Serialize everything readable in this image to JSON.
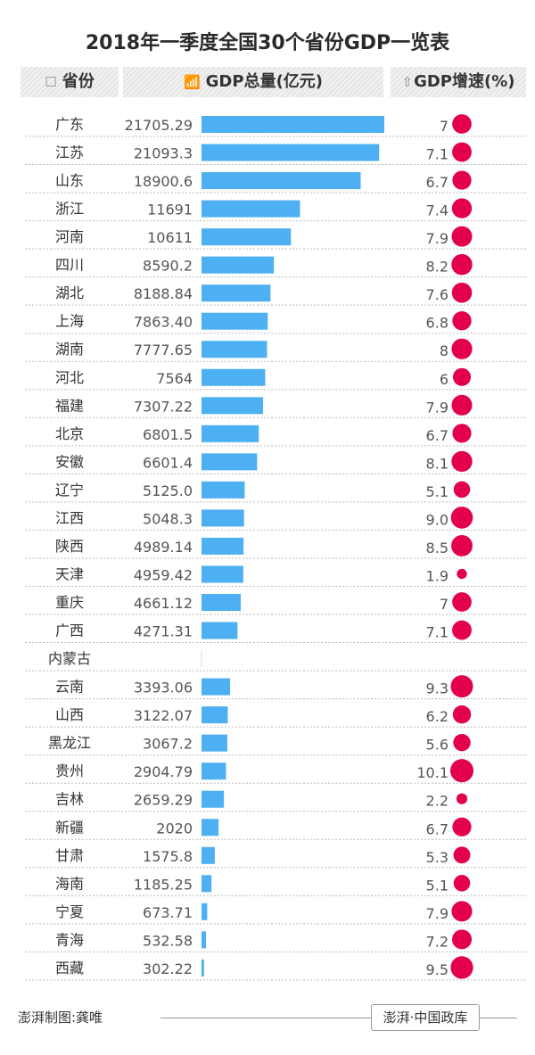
{
  "chart_data": {
    "type": "bar",
    "title": "2018年一季度全国30个省份GDP一览表",
    "columns": {
      "province": "省份",
      "gdp": "GDP总量(亿元)",
      "growth": "GDP增速(%)"
    },
    "column_icons": [
      "checkbox-icon",
      "bar-chart-icon",
      "up-arrow-icon"
    ],
    "colors": {
      "bar": "#4db0f2",
      "bubble": "#e3004f"
    },
    "rows": [
      {
        "province": "广东",
        "gdp": "21705.29",
        "growth": "7"
      },
      {
        "province": "江苏",
        "gdp": "21093.3",
        "growth": "7.1"
      },
      {
        "province": "山东",
        "gdp": "18900.6",
        "growth": "6.7"
      },
      {
        "province": "浙江",
        "gdp": "11691",
        "growth": "7.4"
      },
      {
        "province": "河南",
        "gdp": "10611",
        "growth": "7.9"
      },
      {
        "province": "四川",
        "gdp": "8590.2",
        "growth": "8.2"
      },
      {
        "province": "湖北",
        "gdp": "8188.84",
        "growth": "7.6"
      },
      {
        "province": "上海",
        "gdp": "7863.40",
        "growth": "6.8"
      },
      {
        "province": "湖南",
        "gdp": "7777.65",
        "growth": "8"
      },
      {
        "province": "河北",
        "gdp": "7564",
        "growth": "6"
      },
      {
        "province": "福建",
        "gdp": "7307.22",
        "growth": "7.9"
      },
      {
        "province": "北京",
        "gdp": "6801.5",
        "growth": "6.7"
      },
      {
        "province": "安徽",
        "gdp": "6601.4",
        "growth": "8.1"
      },
      {
        "province": "辽宁",
        "gdp": "5125.0",
        "growth": "5.1"
      },
      {
        "province": "江西",
        "gdp": "5048.3",
        "growth": "9.0"
      },
      {
        "province": "陕西",
        "gdp": "4989.14",
        "growth": "8.5"
      },
      {
        "province": "天津",
        "gdp": "4959.42",
        "growth": "1.9"
      },
      {
        "province": "重庆",
        "gdp": "4661.12",
        "growth": "7"
      },
      {
        "province": "广西",
        "gdp": "4271.31",
        "growth": "7.1"
      },
      {
        "province": "内蒙古",
        "gdp": null,
        "growth": null
      },
      {
        "province": "云南",
        "gdp": "3393.06",
        "growth": "9.3"
      },
      {
        "province": "山西",
        "gdp": "3122.07",
        "growth": "6.2"
      },
      {
        "province": "黑龙江",
        "gdp": "3067.2",
        "growth": "5.6"
      },
      {
        "province": "贵州",
        "gdp": "2904.79",
        "growth": "10.1"
      },
      {
        "province": "吉林",
        "gdp": "2659.29",
        "growth": "2.2"
      },
      {
        "province": "新疆",
        "gdp": "2020",
        "growth": "6.7"
      },
      {
        "province": "甘肃",
        "gdp": "1575.8",
        "growth": "5.3"
      },
      {
        "province": "海南",
        "gdp": "1185.25",
        "growth": "5.1"
      },
      {
        "province": "宁夏",
        "gdp": "673.71",
        "growth": "7.9"
      },
      {
        "province": "青海",
        "gdp": "532.58",
        "growth": "7.2"
      },
      {
        "province": "西藏",
        "gdp": "302.22",
        "growth": "9.5"
      }
    ]
  },
  "footer": {
    "credit": "澎湃制图:龚唯",
    "logo": "澎湃·中国政库"
  }
}
